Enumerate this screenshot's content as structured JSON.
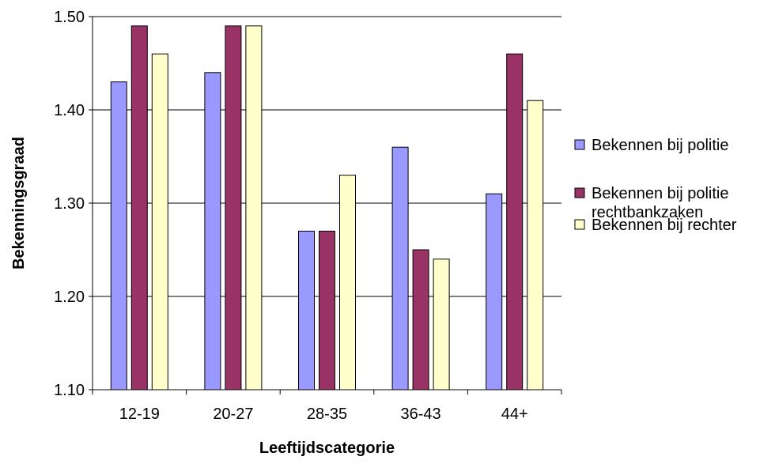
{
  "chart_data": {
    "type": "bar",
    "categories": [
      "12-19",
      "20-27",
      "28-35",
      "36-43",
      "44+"
    ],
    "series": [
      {
        "name": "Bekennen bij politie",
        "color": "#9999FF",
        "values": [
          1.43,
          1.44,
          1.27,
          1.36,
          1.31
        ]
      },
      {
        "name": "Bekennen bij politie rechtbankzaken",
        "name_lines": [
          "Bekennen bij politie",
          "rechtbankzaken"
        ],
        "color": "#993366",
        "values": [
          1.49,
          1.49,
          1.27,
          1.25,
          1.46
        ]
      },
      {
        "name": "Bekennen bij rechter",
        "color": "#FFFFCC",
        "values": [
          1.46,
          1.49,
          1.33,
          1.24,
          1.41
        ]
      }
    ],
    "xlabel": "Leeftijdscategorie",
    "ylabel": "Bekenningsgraad",
    "ylim": [
      1.1,
      1.5
    ],
    "yticks": [
      "1.10",
      "1.20",
      "1.30",
      "1.40",
      "1.50"
    ],
    "grid": true,
    "legend": "right"
  }
}
